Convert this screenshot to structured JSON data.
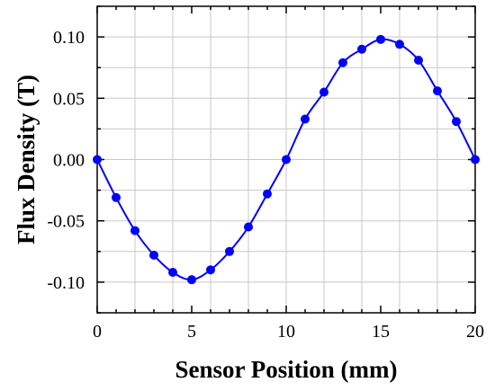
{
  "chart_data": {
    "type": "line",
    "title": "",
    "xlabel": "Sensor Position (mm)",
    "ylabel": "Flux Density (T)",
    "xlim": [
      0,
      20
    ],
    "ylim": [
      -0.125,
      0.125
    ],
    "grid": true,
    "x_ticks": [
      0,
      5,
      10,
      15,
      20
    ],
    "x_tick_labels": [
      "0",
      "5",
      "10",
      "15",
      "20"
    ],
    "y_ticks": [
      0.1,
      0.05,
      0.0,
      -0.05,
      -0.1
    ],
    "y_tick_labels": [
      "0.10",
      "0.05",
      "0.00",
      "-0.05",
      "-0.10"
    ],
    "series": [
      {
        "color": "#0000ff",
        "x": [
          0,
          1,
          2,
          3,
          4,
          5,
          6,
          7,
          8,
          9,
          10,
          11,
          12,
          13,
          14,
          15,
          16,
          17,
          18,
          19,
          20
        ],
        "y": [
          0.0,
          -0.031,
          -0.058,
          -0.078,
          -0.092,
          -0.098,
          -0.09,
          -0.075,
          -0.055,
          -0.028,
          0.0,
          0.033,
          0.055,
          0.079,
          0.09,
          0.098,
          0.094,
          0.081,
          0.056,
          0.031,
          0.0
        ]
      }
    ]
  }
}
